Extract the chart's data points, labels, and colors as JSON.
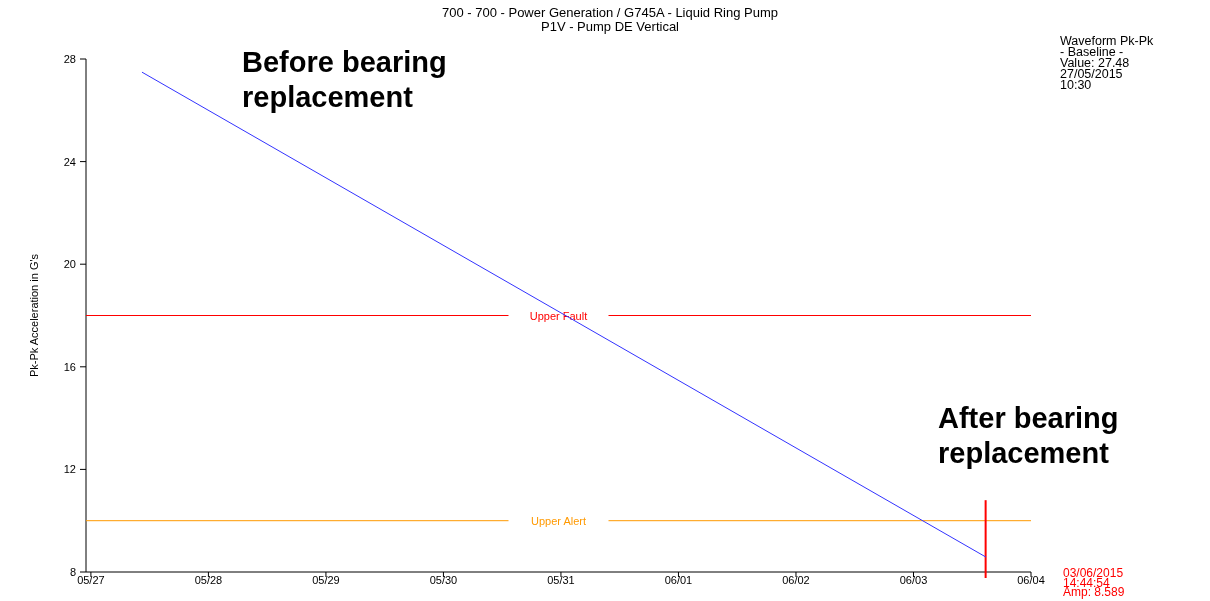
{
  "chart_data": {
    "type": "line",
    "title": "700 - 700 - Power Generation / G745A - Liquid Ring Pump",
    "subtitle": "P1V - Pump DE Vertical",
    "ylabel": "Pk-Pk Acceleration in G's",
    "x": [
      "2015-05-27T10:30",
      "2015-06-03T14:44"
    ],
    "series": [
      {
        "color": "#3333ff",
        "values": [
          27.48,
          8.589
        ]
      }
    ],
    "xlim": [
      "2015-05-26T23:00",
      "2015-06-04T00:00"
    ],
    "xticks": [
      {
        "value": "2015-05-27",
        "label": "05/27"
      },
      {
        "value": "2015-05-28",
        "label": "05/28"
      },
      {
        "value": "2015-05-29",
        "label": "05/29"
      },
      {
        "value": "2015-05-30",
        "label": "05/30"
      },
      {
        "value": "2015-05-31",
        "label": "05/31"
      },
      {
        "value": "2015-06-01",
        "label": "06/01"
      },
      {
        "value": "2015-06-02",
        "label": "06/02"
      },
      {
        "value": "2015-06-03",
        "label": "06/03"
      },
      {
        "value": "2015-06-04",
        "label": "06/04"
      }
    ],
    "ylim": [
      8,
      28
    ],
    "yticks": [
      8,
      12,
      16,
      20,
      24,
      28
    ],
    "ref_lines": [
      {
        "axis": "y",
        "value": 18,
        "label": "Upper Fault",
        "color": "#ff0000"
      },
      {
        "axis": "y",
        "value": 10,
        "label": "Upper Alert",
        "color": "#ff9900"
      },
      {
        "axis": "x",
        "value": "2015-06-03T14:44",
        "label": null,
        "color": "#ff0000"
      }
    ],
    "annotations": [
      "Before bearing\nreplacement",
      "After bearing\nreplacement",
      "Waveform Pk-Pk\n- Baseline -\nValue: 27.48\n27/05/2015\n10:30",
      "03/06/2015\n14:44:54\nAmp: 8.589"
    ],
    "grid": false,
    "marker": "none",
    "line_style": "solid"
  }
}
